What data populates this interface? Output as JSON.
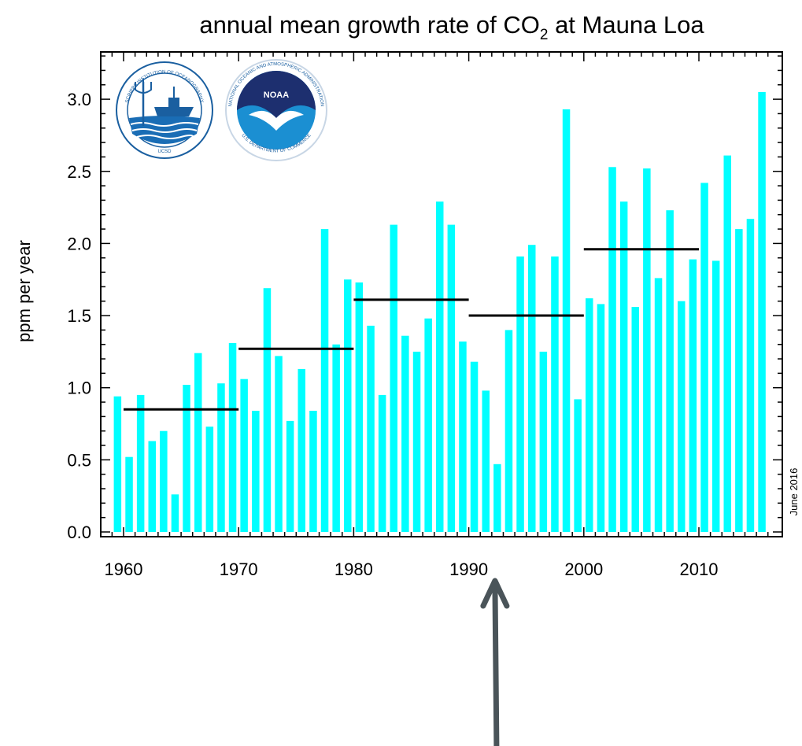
{
  "chart_data": {
    "type": "bar",
    "title_prefix": "annual mean growth rate of CO",
    "title_sub": "2",
    "title_suffix": " at Mauna Loa",
    "ylabel": "ppm per year",
    "xlabel": "",
    "ylim": [
      0,
      3.3
    ],
    "xlim": [
      1958.5,
      2016.8
    ],
    "yticks": [
      "0.0",
      "0.5",
      "1.0",
      "1.5",
      "2.0",
      "2.5",
      "3.0"
    ],
    "yticks_values": [
      0,
      0.5,
      1.0,
      1.5,
      2.0,
      2.5,
      3.0
    ],
    "xticks": [
      "1960",
      "1970",
      "1980",
      "1990",
      "2000",
      "2010"
    ],
    "xticks_values": [
      1960,
      1970,
      1980,
      1990,
      2000,
      2010
    ],
    "bar_color": "#00ffff",
    "years": [
      1959,
      1960,
      1961,
      1962,
      1963,
      1964,
      1965,
      1966,
      1967,
      1968,
      1969,
      1970,
      1971,
      1972,
      1973,
      1974,
      1975,
      1976,
      1977,
      1978,
      1979,
      1980,
      1981,
      1982,
      1983,
      1984,
      1985,
      1986,
      1987,
      1988,
      1989,
      1990,
      1991,
      1992,
      1993,
      1994,
      1995,
      1996,
      1997,
      1998,
      1999,
      2000,
      2001,
      2002,
      2003,
      2004,
      2005,
      2006,
      2007,
      2008,
      2009,
      2010,
      2011,
      2012,
      2013,
      2014,
      2015
    ],
    "values": [
      0.94,
      0.52,
      0.95,
      0.63,
      0.7,
      0.26,
      1.02,
      1.24,
      0.73,
      1.03,
      1.31,
      1.06,
      0.84,
      1.69,
      1.22,
      0.77,
      1.13,
      0.84,
      2.1,
      1.3,
      1.75,
      1.73,
      1.43,
      0.95,
      2.13,
      1.36,
      1.25,
      1.48,
      2.29,
      2.13,
      1.32,
      1.18,
      0.98,
      0.47,
      1.4,
      1.91,
      1.99,
      1.25,
      1.91,
      2.93,
      0.92,
      1.62,
      1.58,
      2.53,
      2.29,
      1.56,
      2.52,
      1.76,
      2.23,
      1.6,
      1.89,
      2.42,
      1.88,
      2.61,
      2.1,
      2.17,
      3.05
    ],
    "decade_averages": [
      {
        "start": 1960,
        "end": 1970,
        "value": 0.85
      },
      {
        "start": 1970,
        "end": 1980,
        "value": 1.27
      },
      {
        "start": 1980,
        "end": 1990,
        "value": 1.61
      },
      {
        "start": 1990,
        "end": 2000,
        "value": 1.5
      },
      {
        "start": 2000,
        "end": 2010,
        "value": 1.96
      }
    ],
    "date_note": "June 2016",
    "annotation_arrow_year": 1991.8
  },
  "logos": {
    "scripps": {
      "ring_text": "SCRIPPS INSTITUTION OF OCEANOGRAPHY",
      "bottom_text": "UCSD"
    },
    "noaa": {
      "name": "NOAA",
      "ring_text": "NATIONAL OCEANIC AND ATMOSPHERIC ADMINISTRATION",
      "bottom_text": "U.S. DEPARTMENT OF COMMERCE"
    }
  },
  "colors": {
    "bar": "#00ffff",
    "decade_line": "#000000",
    "arrow": "#4a5459",
    "noaa_blue": "#1b75bc",
    "noaa_dark": "#1d2f6f"
  }
}
